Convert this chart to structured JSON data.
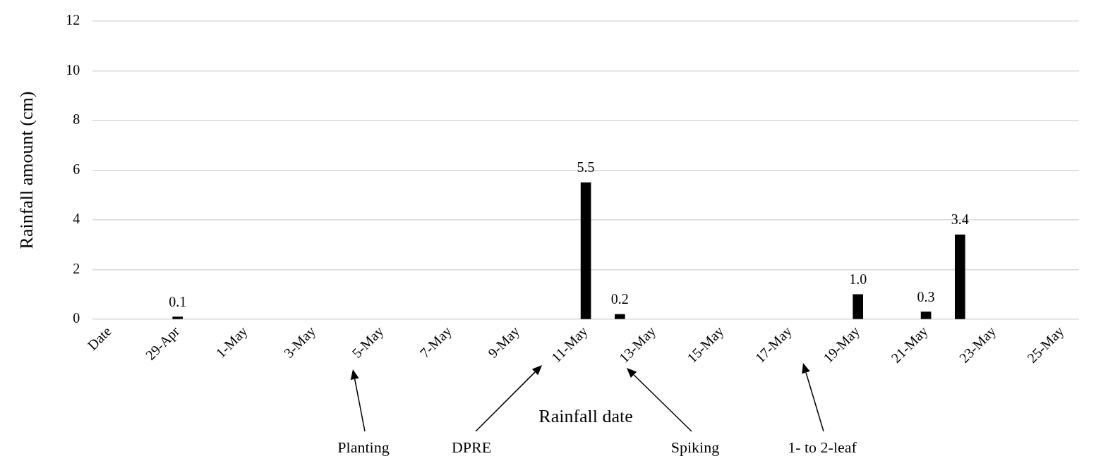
{
  "chart_data": {
    "type": "bar",
    "xlabel": "Rainfall date",
    "ylabel": "Rainfall amount (cm)",
    "categories": [
      "Date",
      null,
      "29-Apr",
      null,
      "1-May",
      null,
      "3-May",
      null,
      "5-May",
      null,
      "7-May",
      null,
      "9-May",
      null,
      "11-May",
      null,
      "13-May",
      null,
      "15-May",
      null,
      "17-May",
      null,
      "19-May",
      null,
      "21-May",
      null,
      "23-May",
      null,
      "25-May"
    ],
    "values": [
      null,
      null,
      0.1,
      null,
      null,
      null,
      null,
      null,
      null,
      null,
      null,
      null,
      null,
      null,
      5.5,
      0.2,
      null,
      null,
      null,
      null,
      null,
      null,
      1.0,
      null,
      0.3,
      3.4,
      null,
      null,
      null
    ],
    "value_labels": [
      null,
      null,
      "0.1",
      null,
      null,
      null,
      null,
      null,
      null,
      null,
      null,
      null,
      null,
      null,
      "5.5",
      "0.2",
      null,
      null,
      null,
      null,
      null,
      null,
      "1.0",
      null,
      "0.3",
      "3.4",
      null,
      null,
      null
    ],
    "color": "#000000",
    "ylim": [
      0,
      12
    ],
    "yticks": [
      0,
      2,
      4,
      6,
      8,
      10,
      12
    ],
    "grid": "y",
    "legend": false,
    "annotations": [
      "Planting",
      "DPRE",
      "Spiking",
      "1- to 2-leaf"
    ]
  }
}
